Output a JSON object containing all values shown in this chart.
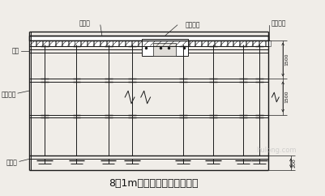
{
  "title": "8．1m层顶板模板支承体系图",
  "title_fontsize": 9,
  "bg_color": "#f0ede8",
  "line_color": "#1a1a1a",
  "labels": {
    "duocengban": "多层板",
    "chuanliangluoshuan": "穿梁螺栓",
    "gangguandamu": "钢管大模",
    "mufang": "木方",
    "gangguan_lizhu": "钢管立柱",
    "mujiaban": "木架板"
  },
  "dim_right_labels": [
    "1500",
    "1500",
    "200"
  ],
  "watermark_color": "#c8c8c8"
}
